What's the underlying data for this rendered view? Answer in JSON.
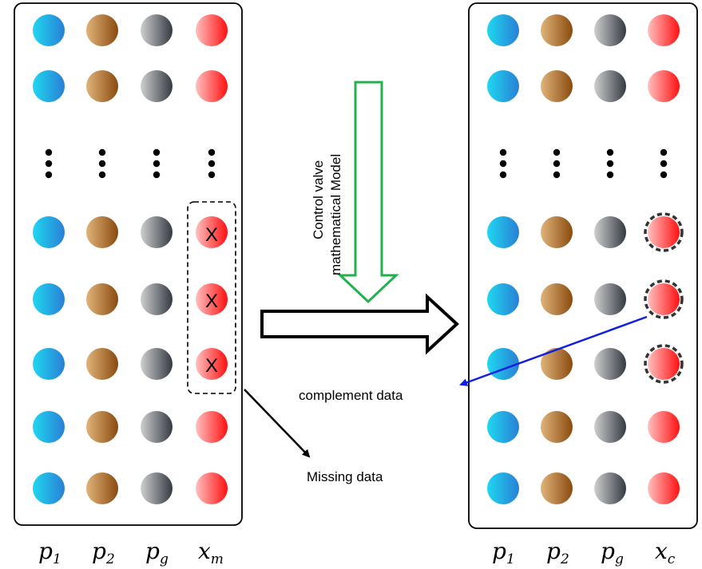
{
  "left_panel": {
    "columns": [
      "p1",
      "p2",
      "pg",
      "xm"
    ],
    "axis_labels": [
      {
        "base": "p",
        "sub": "1"
      },
      {
        "base": "p",
        "sub": "2"
      },
      {
        "base": "p",
        "sub": "g"
      },
      {
        "base": "x",
        "sub": "m"
      }
    ],
    "missing_marker": "X"
  },
  "right_panel": {
    "columns": [
      "p1",
      "p2",
      "pg",
      "xc"
    ],
    "axis_labels": [
      {
        "base": "p",
        "sub": "1"
      },
      {
        "base": "p",
        "sub": "2"
      },
      {
        "base": "p",
        "sub": "g"
      },
      {
        "base": "x",
        "sub": "c"
      }
    ]
  },
  "model_label": {
    "line1": "Control valve",
    "line2": "mathematical Model"
  },
  "annotations": {
    "missing": "Missing data",
    "complement": "complement data"
  },
  "colors": {
    "p1": [
      "#1fd7f0",
      "#2a7fd6"
    ],
    "p2": [
      "#e0b47a",
      "#8a4a0e"
    ],
    "pg": [
      "#c8c8c8",
      "#3a3f47"
    ],
    "x": [
      "#ffb0b0",
      "#ff1818"
    ],
    "model_arrow": "#22b14c",
    "pointer_arrow": "#1020e0"
  }
}
